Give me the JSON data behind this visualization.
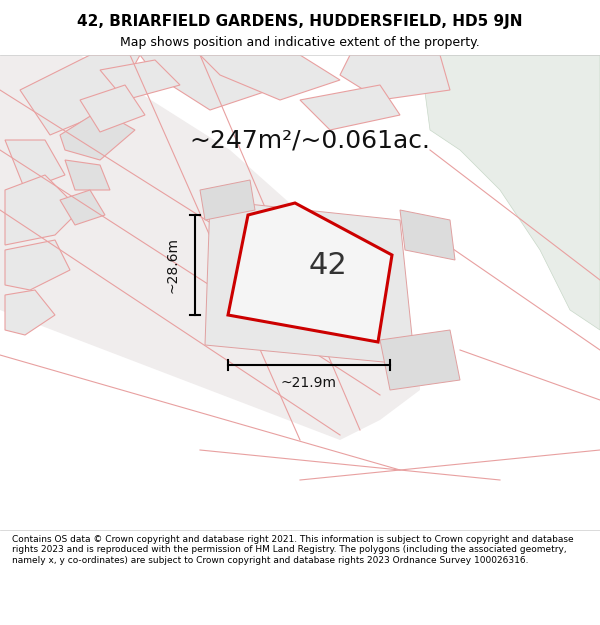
{
  "title_line1": "42, BRIARFIELD GARDENS, HUDDERSFIELD, HD5 9JN",
  "title_line2": "Map shows position and indicative extent of the property.",
  "area_text": "~247m²/~0.061ac.",
  "label_42": "42",
  "dim_width": "~21.9m",
  "dim_height": "~28.6m",
  "footer_text": "Contains OS data © Crown copyright and database right 2021. This information is subject to Crown copyright and database rights 2023 and is reproduced with the permission of HM Land Registry. The polygons (including the associated geometry, namely x, y co-ordinates) are subject to Crown copyright and database rights 2023 Ordnance Survey 100026316.",
  "bg_color": "#f5f0f0",
  "map_bg": "#f5f0f0",
  "green_area_color": "#e8ede8",
  "building_fill": "#e8e8e8",
  "building_stroke": "#e8a0a0",
  "road_color": "#e8a0a0",
  "highlight_fill": "#f5f5f5",
  "highlight_stroke": "#cc0000",
  "fig_width": 6.0,
  "fig_height": 6.25,
  "dpi": 100,
  "map_extent": [
    0,
    1,
    0,
    1
  ]
}
